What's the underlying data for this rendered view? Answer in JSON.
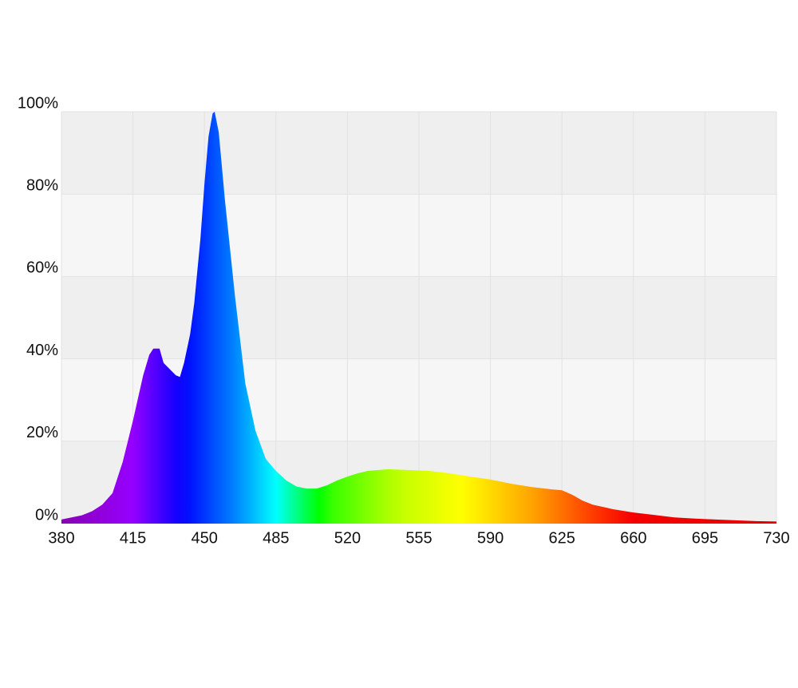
{
  "chart_data": {
    "type": "area",
    "x": [
      380,
      390,
      395,
      400,
      405,
      410,
      415,
      420,
      423,
      425,
      428,
      430,
      433,
      436,
      438,
      440,
      443,
      445,
      448,
      450,
      452,
      454,
      455,
      457,
      460,
      465,
      470,
      475,
      480,
      485,
      490,
      495,
      500,
      505,
      510,
      515,
      520,
      525,
      530,
      540,
      550,
      560,
      570,
      580,
      590,
      600,
      610,
      620,
      625,
      630,
      635,
      640,
      650,
      660,
      670,
      680,
      690,
      700,
      710,
      720,
      730
    ],
    "values": [
      1,
      2,
      3,
      4.6,
      7.4,
      15,
      25,
      36,
      41,
      42.5,
      42.5,
      39,
      37.5,
      36,
      35.6,
      39,
      46,
      53.5,
      69,
      82.5,
      94,
      99.6,
      100,
      95,
      78.7,
      55,
      34,
      22.5,
      15.7,
      12.8,
      10.5,
      9,
      8.5,
      8.5,
      9.3,
      10.5,
      11.4,
      12.2,
      12.8,
      13.2,
      13,
      12.8,
      12.2,
      11.4,
      10.7,
      9.7,
      8.9,
      8.3,
      8.1,
      7,
      5.6,
      4.6,
      3.5,
      2.7,
      2.1,
      1.5,
      1.2,
      1,
      0.8,
      0.6,
      0.5
    ],
    "xlim": [
      380,
      730
    ],
    "xticks": [
      380,
      415,
      450,
      485,
      520,
      555,
      590,
      625,
      660,
      695,
      730
    ],
    "ylim": [
      0,
      100
    ],
    "yticks": [
      {
        "value": 0,
        "label": "0%"
      },
      {
        "value": 20,
        "label": "20%"
      },
      {
        "value": 40,
        "label": "40%"
      },
      {
        "value": 60,
        "label": "60%"
      },
      {
        "value": 80,
        "label": "80%"
      },
      {
        "value": 100,
        "label": "100%"
      }
    ],
    "grid": true
  }
}
